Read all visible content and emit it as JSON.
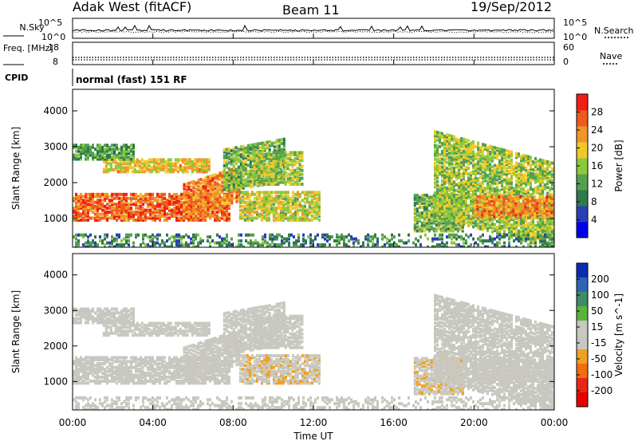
{
  "chart_data": {
    "type": "heatmap",
    "header": {
      "station": "Adak West (fitACF)",
      "beam": "Beam 11",
      "date": "19/Sep/2012"
    },
    "x": {
      "label": "Time UT",
      "ticks": [
        "00:00",
        "04:00",
        "08:00",
        "12:00",
        "16:00",
        "20:00",
        "00:00"
      ],
      "range_hours": [
        0,
        24
      ]
    },
    "strip_nsky": {
      "left_label": "N.Sky",
      "right_label": "N.Search",
      "left_ticks": [
        "10^5",
        "10^0"
      ],
      "right_ticks": [
        "10^5",
        "10^0"
      ],
      "legend_line": "dotted"
    },
    "strip_freq": {
      "left_label": "Freq. [MHz]",
      "left_ticks": [
        "18",
        "8"
      ],
      "right_label": "Nave",
      "right_ticks": [
        "60",
        "0"
      ],
      "legend_line": "dotted"
    },
    "strip_cpid": {
      "label": "CPID",
      "text": "normal (fast) 151 RF"
    },
    "power_panel": {
      "ylabel": "Slant Range [km]",
      "yticks": [
        1000,
        2000,
        3000,
        4000
      ],
      "yrange": [
        200,
        4600
      ],
      "colorbar": {
        "label": "Power [dB]",
        "ticks": [
          "4",
          "8",
          "12",
          "16",
          "20",
          "24",
          "28"
        ],
        "range": [
          0,
          32
        ],
        "colors": [
          "#0000f0",
          "#2a3fb6",
          "#2e7a4c",
          "#55a050",
          "#8cc83c",
          "#f0c828",
          "#f09628",
          "#f05a1e",
          "#f01e14"
        ]
      }
    },
    "velocity_panel": {
      "ylabel": "Slant Range [km]",
      "yticks": [
        1000,
        2000,
        3000,
        4000
      ],
      "yrange": [
        200,
        4600
      ],
      "colorbar": {
        "label": "Velocity [m s^-1]",
        "ticks": [
          "200",
          "100",
          "50",
          "15",
          "-15",
          "-50",
          "-100",
          "-200"
        ],
        "range": [
          -250,
          250
        ],
        "colors": [
          "#0a2db4",
          "#2d64b4",
          "#3c8c64",
          "#5ab43c",
          "#c8c8c0",
          "#c8c8c0",
          "#f0a020",
          "#f06e10",
          "#e62814",
          "#e60000"
        ]
      }
    },
    "echo_regions": [
      {
        "name": "band-1000-day",
        "t": [
          0.0,
          7.8
        ],
        "range": [
          1000,
          1750
        ],
        "power": 26,
        "velocity": 0
      },
      {
        "name": "band-rising",
        "t": [
          5.5,
          8.3
        ],
        "range": [
          1050,
          2000
        ],
        "power": 24,
        "velocity": 0
      },
      {
        "name": "band-2500",
        "t": [
          1.5,
          6.8
        ],
        "range": [
          2350,
          2700
        ],
        "power": 20,
        "velocity": 0
      },
      {
        "name": "band-2800-top",
        "t": [
          0.0,
          3.0
        ],
        "range": [
          2700,
          3100
        ],
        "power": 12,
        "velocity": 5
      },
      {
        "name": "arc-evening",
        "t": [
          7.5,
          10.5
        ],
        "range": [
          1800,
          3000
        ],
        "power": 14,
        "velocity": 0
      },
      {
        "name": "block-0900",
        "t": [
          8.3,
          12.3
        ],
        "range": [
          1000,
          1800
        ],
        "power": 18,
        "velocity": -40
      },
      {
        "name": "noon-far",
        "t": [
          9.0,
          11.5
        ],
        "range": [
          2000,
          2900
        ],
        "power": 16,
        "velocity": 0
      },
      {
        "name": "dawn-patch",
        "t": [
          17.0,
          19.5
        ],
        "range": [
          700,
          1700
        ],
        "power": 14,
        "velocity": -40
      },
      {
        "name": "arc-morning",
        "t": [
          18.0,
          24.0
        ],
        "range": [
          1100,
          3500
        ],
        "power": 16,
        "velocity": 0
      },
      {
        "name": "band-1300-morning",
        "t": [
          20.0,
          24.0
        ],
        "range": [
          1100,
          1700
        ],
        "power": 24,
        "velocity": 0
      },
      {
        "name": "ground-low",
        "t": [
          0.0,
          24.0
        ],
        "range": [
          200,
          600
        ],
        "power": 10,
        "velocity": -20
      }
    ]
  }
}
